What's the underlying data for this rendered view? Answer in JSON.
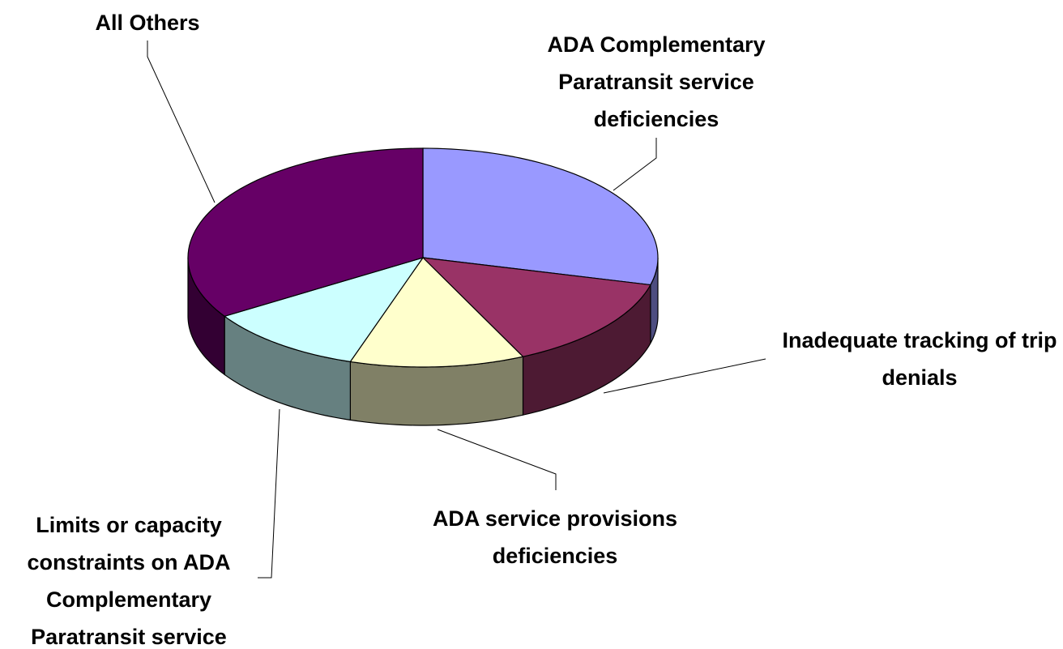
{
  "chart_data": {
    "type": "pie3d",
    "categories": [
      "ADA Complementary Paratransit service deficiencies",
      "Inadequate tracking of trip denials",
      "ADA service provisions deficiencies",
      "Limits or capacity constraints on ADA Complementary Paratransit service",
      "All Others"
    ],
    "values": [
      29,
      14,
      12,
      11,
      34
    ],
    "colors": [
      "#9999ff",
      "#993366",
      "#ffffcc",
      "#ccffff",
      "#660066"
    ],
    "side_colors": [
      "#4d4d80",
      "#4d1a33",
      "#808066",
      "#668080",
      "#330033"
    ]
  }
}
